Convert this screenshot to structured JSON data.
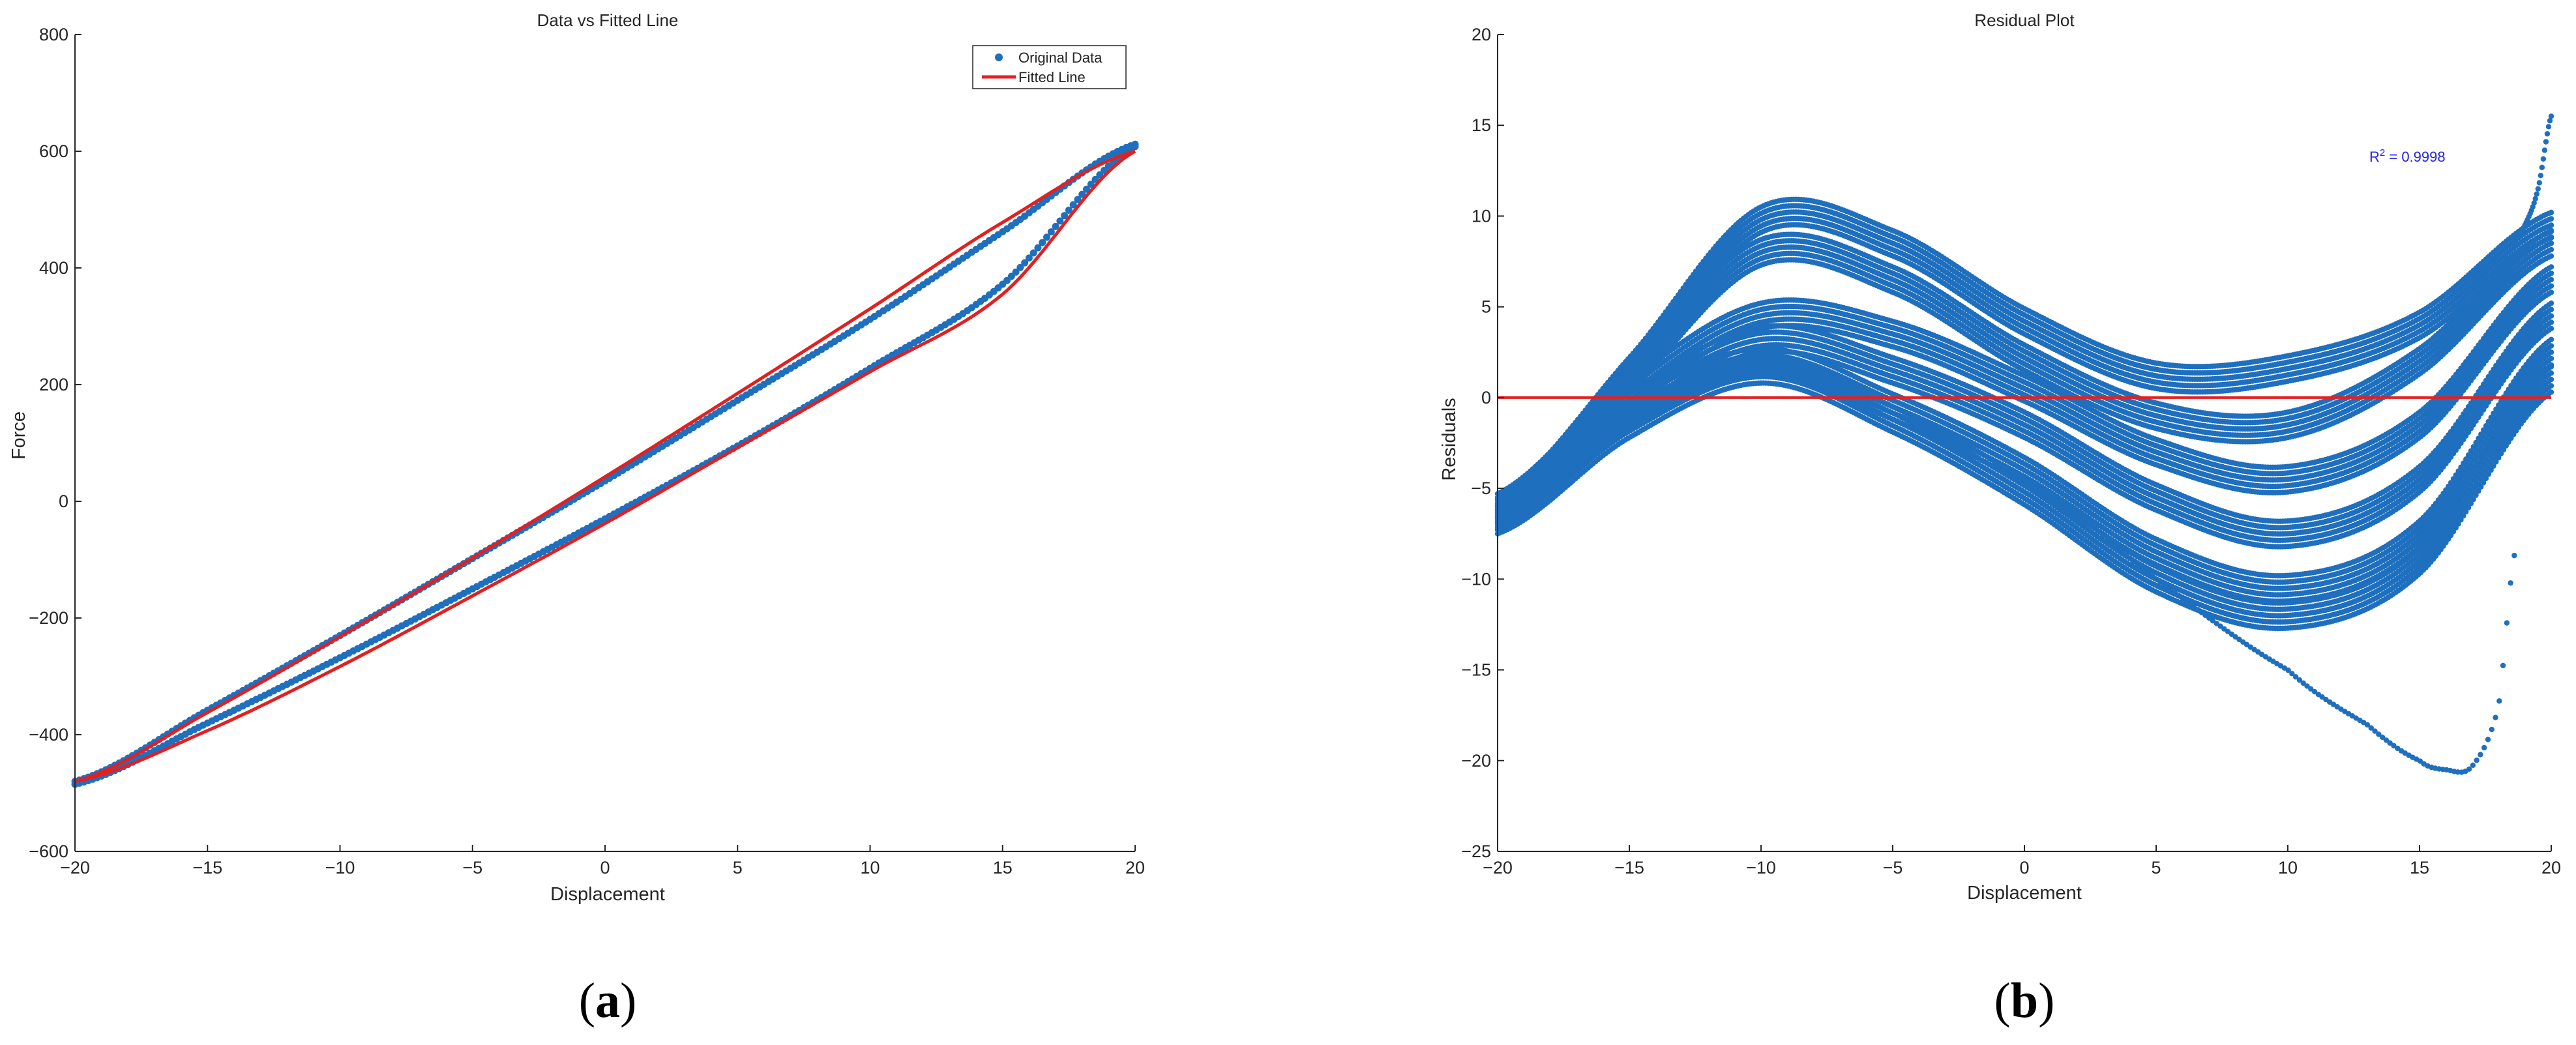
{
  "colors": {
    "data": "#1f6fbf",
    "fit": "#e32020",
    "axis": "#262626",
    "r2": "#2222ee"
  },
  "chart_data": [
    {
      "type": "scatter",
      "title": "Data vs Fitted Line",
      "xlabel": "Displacement",
      "ylabel": "Force",
      "xlim": [
        -20,
        20
      ],
      "ylim": [
        -600,
        800
      ],
      "xticks": [
        -20,
        -15,
        -10,
        -5,
        0,
        5,
        10,
        15,
        20
      ],
      "yticks": [
        -600,
        -400,
        -200,
        0,
        200,
        400,
        600,
        800
      ],
      "xtick_labels": [
        "−20",
        "−15",
        "−10",
        "−5",
        "0",
        "5",
        "10",
        "15",
        "20"
      ],
      "ytick_labels": [
        "−600",
        "−400",
        "−200",
        "0",
        "200",
        "400",
        "600",
        "800"
      ],
      "grid": false,
      "legend": "top-right",
      "series": [
        {
          "name": "Original Data",
          "style": "markers",
          "upper_branch": {
            "x": [
              -20,
              -15,
              -10,
              -5,
              0,
              5,
              10,
              15,
              20
            ],
            "y": [
              -480,
              -358,
              -230,
              -98,
              35,
              173,
              312,
              462,
              612
            ]
          },
          "lower_branch": {
            "x": [
              -20,
              -15,
              -10,
              -5,
              0,
              5,
              10,
              15,
              20
            ],
            "y": [
              -485,
              -380,
              -268,
              -150,
              -30,
              95,
              228,
              372,
              608
            ]
          }
        },
        {
          "name": "Fitted Line",
          "style": "line",
          "upper_branch": {
            "x": [
              -20,
              -15,
              -10,
              -5,
              0,
              5,
              10,
              15,
              20
            ],
            "y": [
              -480,
              -362,
              -232,
              -97,
              42,
              185,
              330,
              478,
              600
            ]
          },
          "lower_branch": {
            "x": [
              -20,
              -15,
              -10,
              -5,
              0,
              5,
              10,
              15,
              20
            ],
            "y": [
              -480,
              -393,
              -283,
              -162,
              -38,
              92,
              222,
              355,
              600
            ]
          }
        }
      ],
      "panel_label": "a"
    },
    {
      "type": "scatter",
      "title": "Residual Plot",
      "xlabel": "Displacement",
      "ylabel": "Residuals",
      "xlim": [
        -20,
        20
      ],
      "ylim": [
        -25,
        20
      ],
      "xticks": [
        -20,
        -15,
        -10,
        -5,
        0,
        5,
        10,
        15,
        20
      ],
      "yticks": [
        -25,
        -20,
        -15,
        -10,
        -5,
        0,
        5,
        10,
        15,
        20
      ],
      "xtick_labels": [
        "−20",
        "−15",
        "−10",
        "−5",
        "0",
        "5",
        "10",
        "15",
        "20"
      ],
      "ytick_labels": [
        "−25",
        "−20",
        "−15",
        "−10",
        "−5",
        "0",
        "5",
        "10",
        "15",
        "20"
      ],
      "grid": false,
      "annotation_r2": "0.9998",
      "zero_line": 0,
      "bands": [
        {
          "x": [
            -20,
            -15,
            -10,
            -5,
            0,
            5,
            10,
            15,
            20
          ],
          "y": [
            -6.2,
            1.5,
            9.8,
            8.5,
            4.2,
            1.2,
            1.6,
            4.0,
            9.5
          ]
        },
        {
          "x": [
            -20,
            -15,
            -10,
            -5,
            0,
            5,
            10,
            15,
            20
          ],
          "y": [
            -6.0,
            1.0,
            8.0,
            6.5,
            2.2,
            -1.0,
            -1.5,
            2.0,
            8.5
          ]
        },
        {
          "x": [
            -20,
            -15,
            -10,
            -5,
            0,
            5,
            10,
            15,
            20
          ],
          "y": [
            -6.3,
            0.2,
            4.5,
            3.5,
            0.5,
            -3.0,
            -4.5,
            -1.5,
            6.5
          ]
        },
        {
          "x": [
            -20,
            -15,
            -10,
            -5,
            0,
            5,
            10,
            15,
            20
          ],
          "y": [
            -6.5,
            -0.5,
            3.2,
            1.5,
            -1.5,
            -5.5,
            -7.5,
            -4.5,
            4.5
          ]
        },
        {
          "x": [
            -20,
            -15,
            -10,
            -5,
            0,
            5,
            10,
            15,
            20
          ],
          "y": [
            -6.6,
            -1.0,
            2.0,
            -0.5,
            -4.0,
            -8.5,
            -10.5,
            -7.5,
            2.5
          ]
        },
        {
          "x": [
            -20,
            -15,
            -10,
            -5,
            0,
            5,
            10,
            15,
            20
          ],
          "y": [
            -6.8,
            -1.5,
            1.5,
            -1.2,
            -5.2,
            -10.0,
            -12.0,
            -9.0,
            1.0
          ]
        }
      ],
      "tail": {
        "x": [
          0,
          5,
          10,
          13,
          15,
          16,
          17,
          18,
          18.6
        ],
        "y": [
          -4.5,
          -10.0,
          -15.0,
          -18.0,
          -20.0,
          -20.5,
          -20.3,
          -17.0,
          -8.7
        ]
      },
      "spike": {
        "x": [
          18.5,
          19,
          19.5,
          20
        ],
        "y": [
          8.5,
          9.5,
          11.5,
          15.5
        ]
      },
      "panel_label": "b"
    }
  ]
}
